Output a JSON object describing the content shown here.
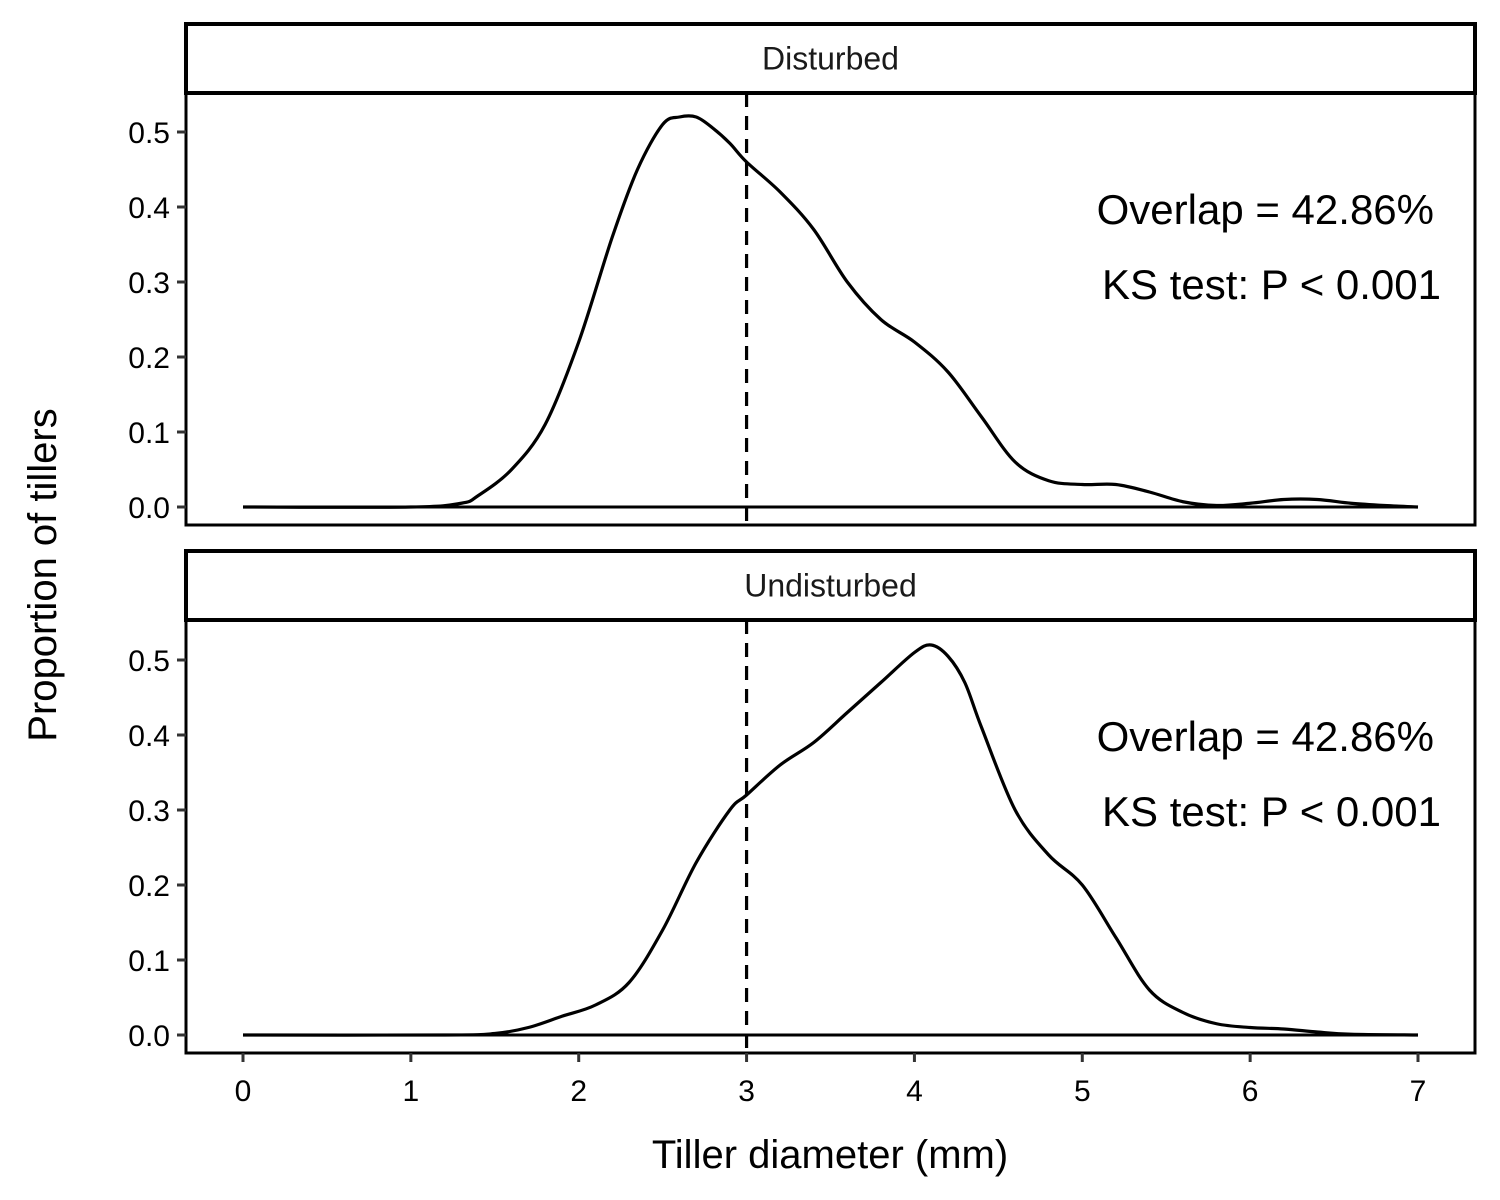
{
  "chart_data": {
    "type": "line",
    "xlabel": "Tiller diameter (mm)",
    "ylabel": "Proportion of tillers",
    "xlim": [
      0,
      7
    ],
    "ylim": [
      0,
      0.5
    ],
    "x_ticks": [
      "0",
      "1",
      "2",
      "3",
      "4",
      "5",
      "6",
      "7"
    ],
    "y_ticks": [
      "0.0",
      "0.1",
      "0.2",
      "0.3",
      "0.4",
      "0.5"
    ],
    "grid": false,
    "reference_line": {
      "x": 3,
      "style": "dashed"
    },
    "panels": [
      {
        "strip": "Disturbed",
        "annotations": [
          "Overlap = 42.86%",
          "KS test: P < 0.001"
        ],
        "x": [
          0,
          1.0,
          1.3,
          1.4,
          1.6,
          1.8,
          2.0,
          2.2,
          2.35,
          2.5,
          2.6,
          2.7,
          2.8,
          2.9,
          3.0,
          3.2,
          3.4,
          3.6,
          3.8,
          4.0,
          4.2,
          4.4,
          4.6,
          4.8,
          5.0,
          5.2,
          5.4,
          5.6,
          5.8,
          6.0,
          6.2,
          6.4,
          6.6,
          6.8,
          7.0
        ],
        "y": [
          0,
          0,
          0.005,
          0.015,
          0.05,
          0.11,
          0.22,
          0.36,
          0.45,
          0.51,
          0.52,
          0.52,
          0.505,
          0.485,
          0.46,
          0.42,
          0.37,
          0.3,
          0.25,
          0.22,
          0.18,
          0.12,
          0.06,
          0.035,
          0.03,
          0.03,
          0.02,
          0.007,
          0.002,
          0.005,
          0.01,
          0.01,
          0.005,
          0.002,
          0
        ]
      },
      {
        "strip": "Undisturbed",
        "annotations": [
          "Overlap = 42.86%",
          "KS test: P < 0.001"
        ],
        "x": [
          0,
          1.2,
          1.5,
          1.7,
          1.9,
          2.1,
          2.3,
          2.5,
          2.7,
          2.9,
          3.0,
          3.2,
          3.4,
          3.6,
          3.8,
          4.0,
          4.1,
          4.2,
          4.3,
          4.4,
          4.6,
          4.8,
          5.0,
          5.2,
          5.4,
          5.6,
          5.8,
          6.0,
          6.2,
          6.4,
          6.6,
          7.0
        ],
        "y": [
          0,
          0,
          0.002,
          0.01,
          0.025,
          0.04,
          0.07,
          0.14,
          0.23,
          0.3,
          0.32,
          0.36,
          0.39,
          0.43,
          0.47,
          0.51,
          0.52,
          0.505,
          0.47,
          0.41,
          0.3,
          0.24,
          0.2,
          0.13,
          0.06,
          0.03,
          0.015,
          0.01,
          0.008,
          0.004,
          0.001,
          0
        ]
      }
    ]
  }
}
